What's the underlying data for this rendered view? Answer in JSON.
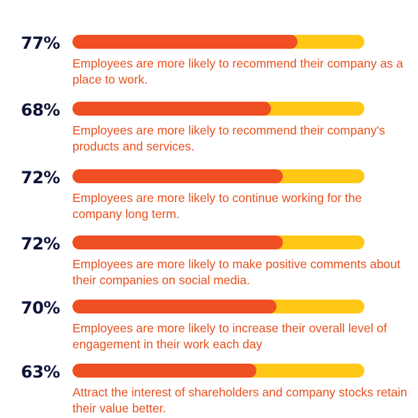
{
  "colors": {
    "percent_text": "#0f1538",
    "bar_fill": "#f04e23",
    "bar_track": "#ffc817",
    "description_text": "#e8511e",
    "background": "#ffffff"
  },
  "chart_data": {
    "type": "bar",
    "orientation": "horizontal",
    "ylim": [
      0,
      100
    ],
    "grid": false,
    "categories": [
      "Employees are more likely to recommend their company as a place to work.",
      "Employees are more likely to recommend their company's products and services.",
      "Employees are more likely to continue working for the company long term.",
      "Employees are more likely to make positive comments about their companies on social media.",
      "Employees are more likely to increase their overall level of engagement in their work each day",
      "Attract the interest of shareholders and company stocks retain their value better."
    ],
    "values": [
      77,
      68,
      72,
      72,
      70,
      63
    ],
    "data_labels": [
      "77%",
      "68%",
      "72%",
      "72%",
      "70%",
      "63%"
    ]
  }
}
